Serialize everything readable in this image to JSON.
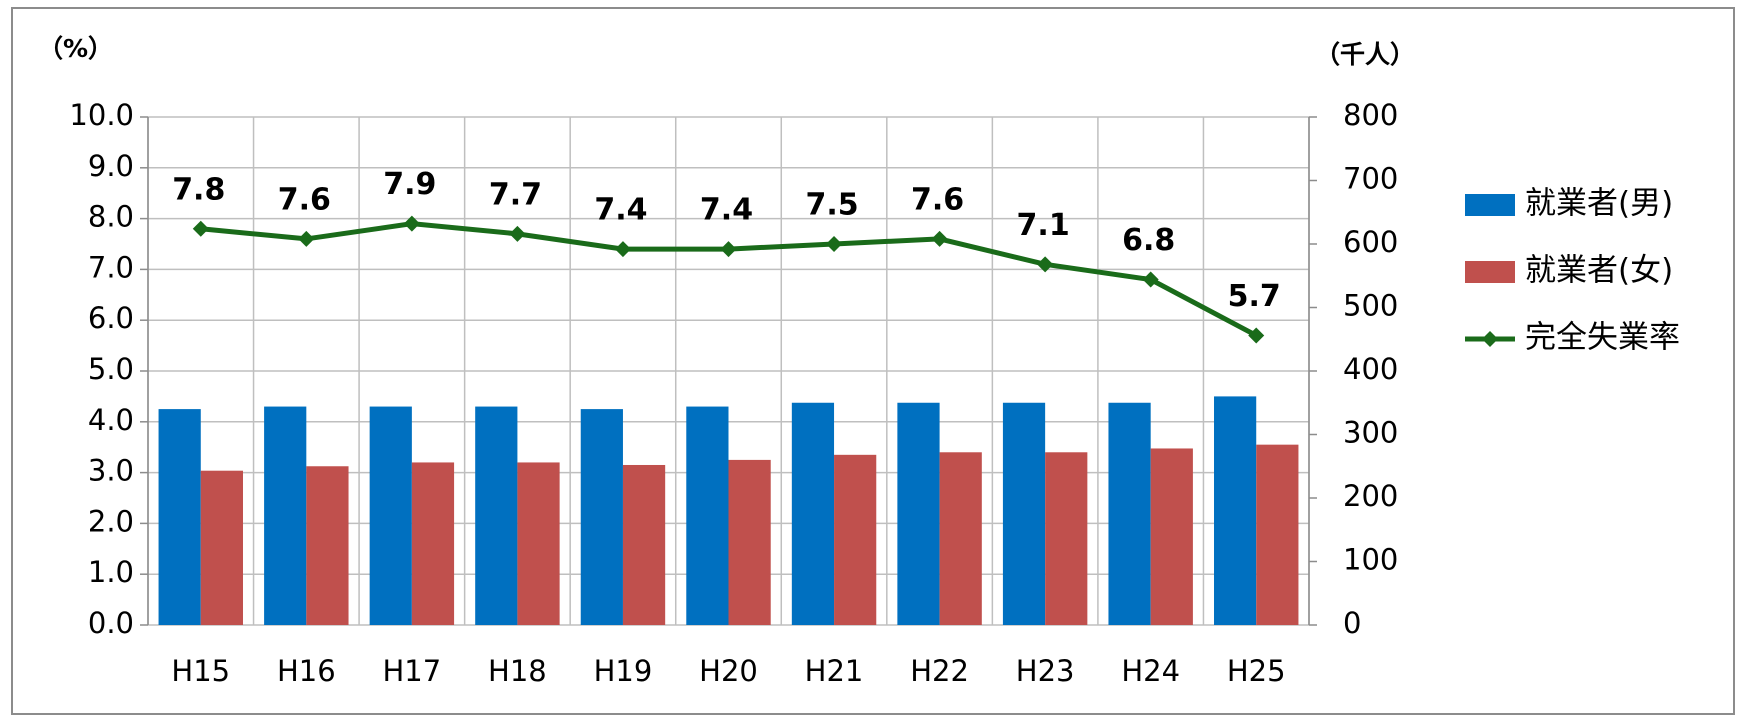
{
  "chart_data": {
    "type": "bar_line",
    "y_label": "（%）",
    "y2_label": "（千人）",
    "categories": [
      "H15",
      "H16",
      "H17",
      "H18",
      "H19",
      "H20",
      "H21",
      "H22",
      "H23",
      "H24",
      "H25"
    ],
    "series": [
      {
        "name": "就業者(男)",
        "type": "bar",
        "axis": "y2",
        "color": "#0070c0",
        "values": [
          340,
          344,
          344,
          344,
          340,
          344,
          350,
          350,
          350,
          350,
          360
        ]
      },
      {
        "name": "就業者(女)",
        "type": "bar",
        "axis": "y2",
        "color": "#c0504d",
        "values": [
          243,
          250,
          256,
          256,
          252,
          260,
          268,
          272,
          272,
          278,
          284
        ]
      },
      {
        "name": "完全失業率",
        "type": "line",
        "axis": "y",
        "color": "#1a6b1a",
        "values": [
          7.8,
          7.6,
          7.9,
          7.7,
          7.4,
          7.4,
          7.5,
          7.6,
          7.1,
          6.8,
          5.7
        ]
      }
    ],
    "ylim": [
      0,
      10
    ],
    "yticks": [
      {
        "value": 0,
        "label": "0.0"
      },
      {
        "value": 1,
        "label": "1.0"
      },
      {
        "value": 2,
        "label": "2.0"
      },
      {
        "value": 3,
        "label": "3.0"
      },
      {
        "value": 4,
        "label": "4.0"
      },
      {
        "value": 5,
        "label": "5.0"
      },
      {
        "value": 6,
        "label": "6.0"
      },
      {
        "value": 7,
        "label": "7.0"
      },
      {
        "value": 8,
        "label": "8.0"
      },
      {
        "value": 9,
        "label": "9.0"
      },
      {
        "value": 10,
        "label": "10.0"
      }
    ],
    "y2lim": [
      0,
      800
    ],
    "y2ticks": [
      0,
      100,
      200,
      300,
      400,
      500,
      600,
      700,
      800
    ],
    "grid": true,
    "legend": "right"
  }
}
